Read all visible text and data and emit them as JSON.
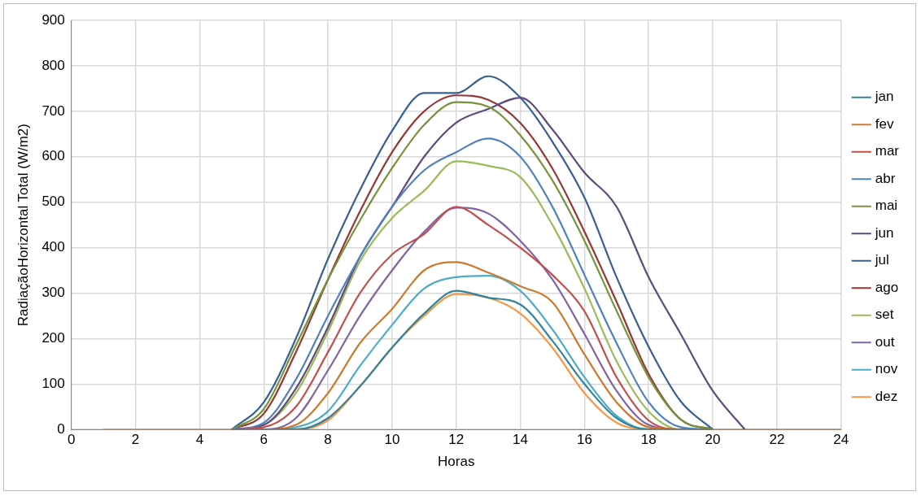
{
  "chart_data": {
    "type": "line",
    "xlabel": "Horas",
    "ylabel": "RadiaçãoHorizontal Total (W/m2)",
    "x": [
      1,
      2,
      3,
      4,
      5,
      6,
      7,
      8,
      9,
      10,
      11,
      12,
      13,
      14,
      15,
      16,
      17,
      18,
      19,
      20,
      21,
      22,
      23,
      24
    ],
    "xlim": [
      0,
      24
    ],
    "xticks": [
      0,
      2,
      4,
      6,
      8,
      10,
      12,
      14,
      16,
      18,
      20,
      22,
      24
    ],
    "ylim": [
      0,
      900
    ],
    "yticks": [
      0,
      100,
      200,
      300,
      400,
      500,
      600,
      700,
      800,
      900
    ],
    "grid": true,
    "legend": "right",
    "marker": "none",
    "line_style": "solid",
    "series": [
      {
        "name": "jan",
        "color": "#31849b",
        "values": [
          null,
          null,
          null,
          null,
          0,
          0,
          0,
          25,
          95,
          180,
          255,
          305,
          290,
          275,
          195,
          100,
          25,
          0,
          0,
          0,
          null,
          null,
          null,
          null
        ]
      },
      {
        "name": "fev",
        "color": "#cc7a30",
        "values": [
          null,
          null,
          null,
          null,
          0,
          0,
          10,
          80,
          190,
          265,
          350,
          368,
          345,
          315,
          280,
          165,
          60,
          5,
          0,
          0,
          null,
          null,
          null,
          null
        ]
      },
      {
        "name": "mar",
        "color": "#c0504d",
        "values": [
          null,
          null,
          null,
          null,
          0,
          5,
          50,
          170,
          300,
          385,
          430,
          490,
          450,
          400,
          340,
          260,
          115,
          20,
          0,
          0,
          null,
          null,
          null,
          null
        ]
      },
      {
        "name": "abr",
        "color": "#4f81bd",
        "values": [
          null,
          null,
          null,
          null,
          0,
          15,
          110,
          250,
          380,
          490,
          570,
          610,
          640,
          600,
          490,
          340,
          190,
          60,
          5,
          0,
          null,
          null,
          null,
          null
        ]
      },
      {
        "name": "mai",
        "color": "#77933c",
        "values": [
          null,
          null,
          null,
          null,
          0,
          45,
          185,
          330,
          460,
          575,
          670,
          720,
          710,
          647,
          548,
          415,
          261,
          115,
          22,
          0,
          null,
          null,
          null,
          null
        ]
      },
      {
        "name": "jun",
        "color": "#604a7b",
        "values": [
          null,
          null,
          null,
          null,
          0,
          10,
          90,
          225,
          380,
          490,
          600,
          675,
          705,
          730,
          660,
          565,
          490,
          335,
          210,
          85,
          0,
          null,
          null,
          null
        ]
      },
      {
        "name": "jul",
        "color": "#376092",
        "values": [
          null,
          null,
          null,
          null,
          0,
          60,
          200,
          375,
          527,
          657,
          740,
          740,
          777,
          730,
          633,
          510,
          335,
          182,
          62,
          0,
          null,
          null,
          null,
          null
        ]
      },
      {
        "name": "ago",
        "color": "#953735",
        "values": [
          null,
          null,
          null,
          null,
          0,
          35,
          170,
          330,
          480,
          610,
          700,
          735,
          725,
          674,
          574,
          435,
          281,
          122,
          22,
          0,
          null,
          null,
          null,
          null
        ]
      },
      {
        "name": "set",
        "color": "#9bbb59",
        "values": [
          null,
          null,
          null,
          null,
          0,
          10,
          80,
          215,
          370,
          465,
          525,
          590,
          580,
          555,
          450,
          310,
          150,
          40,
          0,
          0,
          null,
          null,
          null,
          null
        ]
      },
      {
        "name": "out",
        "color": "#8064a2",
        "values": [
          null,
          null,
          null,
          null,
          0,
          0,
          25,
          130,
          250,
          350,
          435,
          488,
          475,
          415,
          330,
          210,
          85,
          10,
          0,
          0,
          null,
          null,
          null,
          null
        ]
      },
      {
        "name": "nov",
        "color": "#4bacc6",
        "values": [
          null,
          null,
          null,
          null,
          0,
          0,
          5,
          40,
          140,
          230,
          310,
          335,
          338,
          305,
          220,
          115,
          30,
          0,
          0,
          0,
          null,
          null,
          null,
          null
        ]
      },
      {
        "name": "dez",
        "color": "#f79646",
        "values": [
          0,
          0,
          0,
          0,
          0,
          0,
          0,
          20,
          95,
          180,
          250,
          298,
          290,
          255,
          180,
          80,
          15,
          0,
          0,
          0,
          0,
          0,
          0,
          0
        ]
      }
    ]
  }
}
